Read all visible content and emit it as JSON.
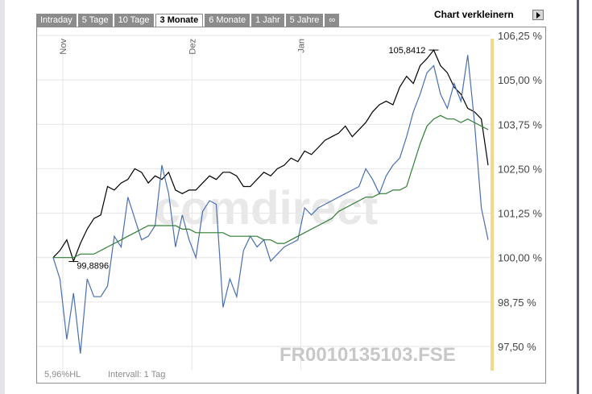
{
  "tabs": [
    {
      "label": "Intraday",
      "active": false
    },
    {
      "label": "5 Tage",
      "active": false
    },
    {
      "label": "10 Tage",
      "active": false
    },
    {
      "label": "3 Monate",
      "active": true
    },
    {
      "label": "6 Monate",
      "active": false
    },
    {
      "label": "1 Jahr",
      "active": false
    },
    {
      "label": "5 Jahre",
      "active": false
    },
    {
      "label": "∞",
      "active": false
    }
  ],
  "shrink_label": "Chart verkleinern",
  "watermark": "comdirect",
  "isin_label": "FR0010135103.FSE",
  "footer": {
    "range": "5,96%HL",
    "interval": "Intervall: 1 Tag"
  },
  "colors": {
    "price": "#000000",
    "benchmark": "#4a6fb0",
    "average": "#2e7d32",
    "axis_bar": "#f5d78a"
  },
  "chart_data": {
    "type": "line",
    "y_ticks": [
      "106,25 %",
      "105,00 %",
      "103,75 %",
      "102,50 %",
      "101,25 %",
      "100,00 %",
      "98,75 %",
      "97,50 %"
    ],
    "ylim": [
      97.0,
      106.4
    ],
    "month_labels": [
      "Nov",
      "Dez",
      "Jan"
    ],
    "annotations": [
      {
        "label": "105,8412",
        "x": 56,
        "y": 105.84
      },
      {
        "label": "99,8896",
        "x": 3,
        "y": 99.89
      }
    ],
    "x_count": 65,
    "series": [
      {
        "color": "black",
        "values": [
          100.0,
          100.2,
          100.5,
          99.9,
          100.4,
          100.8,
          101.1,
          101.2,
          102.0,
          101.9,
          102.1,
          102.2,
          102.5,
          102.4,
          102.1,
          102.3,
          102.2,
          102.4,
          101.9,
          101.8,
          101.9,
          101.9,
          102.1,
          102.3,
          102.2,
          102.4,
          102.4,
          102.3,
          102.0,
          102.0,
          102.2,
          102.4,
          102.3,
          102.5,
          102.6,
          102.8,
          102.7,
          103.0,
          102.9,
          103.1,
          103.3,
          103.4,
          103.5,
          103.7,
          103.4,
          103.6,
          103.8,
          104.1,
          104.3,
          104.4,
          104.3,
          104.8,
          105.1,
          104.9,
          105.4,
          105.6,
          105.84,
          105.4,
          105.2,
          104.8,
          104.6,
          104.2,
          104.1,
          103.9,
          102.6
        ]
      },
      {
        "color": "blue",
        "values": [
          100.0,
          99.4,
          97.7,
          99.0,
          97.3,
          99.4,
          98.9,
          98.9,
          99.2,
          100.6,
          100.3,
          101.7,
          101.1,
          100.5,
          100.6,
          100.9,
          102.6,
          101.8,
          100.3,
          101.2,
          100.5,
          100.0,
          101.3,
          101.6,
          101.5,
          98.6,
          99.4,
          98.9,
          100.2,
          100.6,
          100.3,
          100.5,
          99.9,
          100.1,
          100.3,
          100.4,
          100.5,
          101.4,
          101.2,
          101.4,
          101.5,
          101.6,
          101.7,
          101.8,
          101.9,
          102.0,
          102.5,
          102.2,
          101.8,
          102.3,
          102.6,
          102.8,
          103.4,
          104.1,
          104.6,
          105.2,
          105.4,
          104.6,
          104.2,
          104.9,
          104.4,
          105.7,
          103.8,
          101.4,
          100.5
        ]
      },
      {
        "color": "green",
        "values": [
          100.0,
          100.0,
          100.0,
          100.0,
          100.1,
          100.1,
          100.1,
          100.2,
          100.3,
          100.4,
          100.5,
          100.6,
          100.7,
          100.8,
          100.9,
          100.9,
          100.9,
          100.9,
          100.9,
          100.8,
          100.8,
          100.7,
          100.7,
          100.7,
          100.7,
          100.7,
          100.6,
          100.6,
          100.6,
          100.6,
          100.6,
          100.5,
          100.5,
          100.4,
          100.4,
          100.5,
          100.6,
          100.7,
          100.8,
          100.9,
          101.0,
          101.1,
          101.3,
          101.4,
          101.5,
          101.6,
          101.7,
          101.7,
          101.8,
          101.8,
          101.9,
          101.9,
          102.0,
          102.6,
          103.2,
          103.7,
          103.9,
          104.0,
          103.9,
          103.9,
          103.8,
          103.9,
          103.8,
          103.7,
          103.6
        ]
      }
    ]
  }
}
